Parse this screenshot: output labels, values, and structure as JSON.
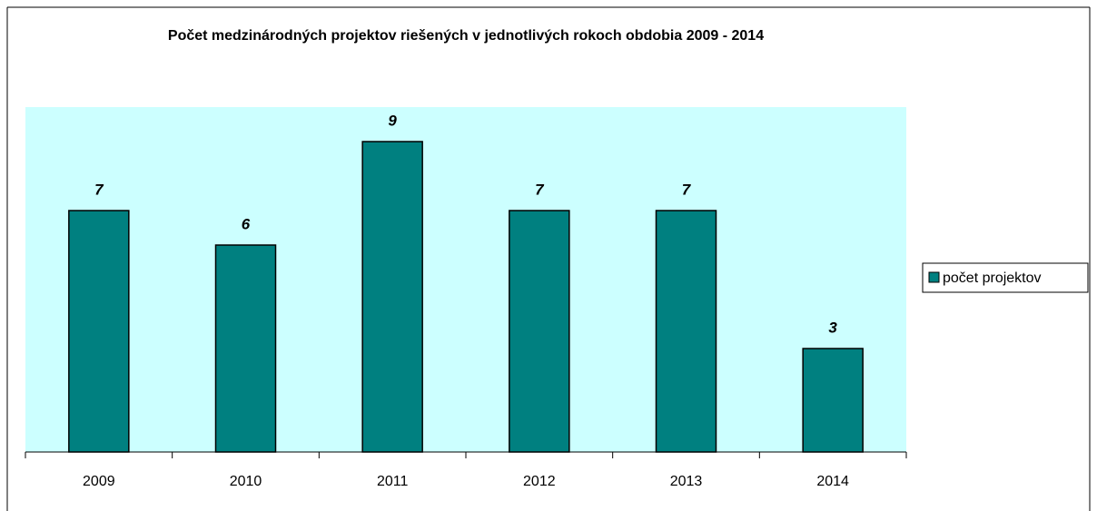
{
  "chart_data": {
    "type": "bar",
    "title": "Počet medzinárodných projektov riešených v jednotlivých rokoch obdobia 2009 - 2014",
    "categories": [
      "2009",
      "2010",
      "2011",
      "2012",
      "2013",
      "2014"
    ],
    "series": [
      {
        "name": "počet projektov",
        "color": "#008080",
        "values": [
          7,
          6,
          9,
          7,
          7,
          3
        ]
      }
    ],
    "ylim": [
      0,
      10
    ],
    "plot_background": "#ccffff",
    "legend": "right"
  }
}
